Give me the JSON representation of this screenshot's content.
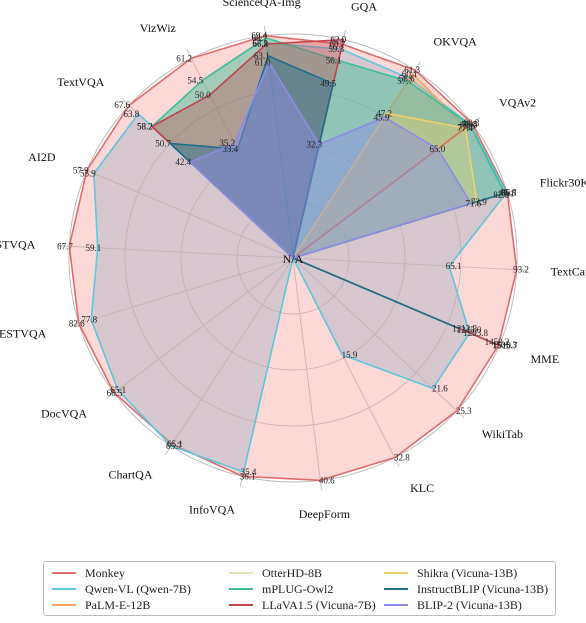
{
  "chart_data": {
    "type": "radar",
    "title": "",
    "axes": [
      "GQA",
      "OKVQA",
      "VQAv2",
      "Flickr30K",
      "TextCaps",
      "MME",
      "WikiTab",
      "KLC",
      "DeepForm",
      "InfoVQA",
      "ChartQA",
      "DocVQA",
      "ESTVQA",
      "STVQA",
      "AI2D",
      "TextVQA",
      "VizWiz",
      "ScienceQA-Img"
    ],
    "center_label": "N/A",
    "grid": true,
    "legend_position": "bottom",
    "series": [
      {
        "name": "Monkey",
        "color": "#e06c6c",
        "fill": "#f8a9a6",
        "values": [
          60.7,
          61.3,
          80.3,
          86.1,
          93.2,
          1505.3,
          25.3,
          32.8,
          40.6,
          36.1,
          65.1,
          66.5,
          82.6,
          67.7,
          57.9,
          67.6,
          61.2,
          69.4
        ],
        "labels": [
          "60.7",
          "61.3",
          "80.3",
          "86.1",
          "93.2",
          "1505.3",
          "25.3",
          "32.8",
          "40.6",
          "36.1",
          "65.1",
          "66.5",
          "82.6",
          "67.7",
          "57.9",
          "67.6",
          "61.2",
          "69.4"
        ]
      },
      {
        "name": "Qwen-VL (Qwen-7B)",
        "color": "#5bc8dc",
        "fill": "#aab4c4",
        "values": [
          59.3,
          58.6,
          79.5,
          85.8,
          65.1,
          1293.8,
          21.6,
          15.9,
          null,
          35.4,
          65.7,
          65.1,
          77.8,
          59.1,
          55.9,
          63.8,
          null,
          67.1
        ],
        "labels": [
          "59.3",
          "58.6",
          "79.5",
          "85.8",
          "65.1",
          "1293.8",
          "21.6",
          "15.9",
          "",
          "35.4",
          "65.7",
          "65.1",
          "77.8",
          "59.1",
          "55.9",
          "63.8",
          "",
          "67.1"
        ]
      },
      {
        "name": "PaLM-E-12B",
        "color": "#f4a261",
        "fill": "#f4a261",
        "values": [
          null,
          60.1,
          77.7,
          null,
          null,
          null,
          null,
          null,
          null,
          null,
          null,
          null,
          null,
          null,
          null,
          null,
          null,
          null
        ],
        "labels": [
          "",
          "60.1",
          "77.7",
          "",
          "",
          "",
          "",
          "",
          "",
          "",
          "",
          "",
          "",
          "",
          "",
          "",
          "",
          ""
        ]
      },
      {
        "name": "OtterHD-8B",
        "color": "#e9e2b4",
        "fill": "#e9e2b4",
        "values": [
          null,
          null,
          null,
          null,
          null,
          1245.0,
          null,
          null,
          null,
          null,
          null,
          null,
          null,
          null,
          null,
          null,
          null,
          null
        ],
        "labels": [
          "",
          "",
          "",
          "",
          "",
          "1245.0",
          "",
          "",
          "",
          "",
          "",
          "",
          "",
          "",
          "",
          "",
          "",
          ""
        ]
      },
      {
        "name": "mPLUG-Owl2",
        "color": "#3cbf9a",
        "fill": "#3cbf9a",
        "values": [
          56.1,
          57.7,
          79.4,
          85.1,
          null,
          1450.2,
          null,
          null,
          null,
          null,
          null,
          null,
          null,
          null,
          null,
          58.2,
          54.5,
          68.7
        ],
        "labels": [
          "56.1",
          "57.7",
          "79.4",
          "85.1",
          "",
          "1450.2",
          "",
          "",
          "",
          "",
          "",
          "",
          "",
          "",
          "",
          "58.2",
          "54.5",
          "68.7"
        ]
      },
      {
        "name": "LLaVA1.5 (Vicuna-7B)",
        "color": "#c0444c",
        "fill": "#c0444c",
        "values": [
          62.0,
          null,
          78.5,
          null,
          null,
          1510.7,
          null,
          null,
          null,
          null,
          null,
          null,
          null,
          null,
          null,
          58.2,
          50.0,
          66.8
        ],
        "labels": [
          "62.0",
          "",
          "78.5",
          "",
          "",
          "1510.7",
          "",
          "",
          "",
          "",
          "",
          "",
          "",
          "",
          "",
          "58.2",
          "50.0",
          "66.8"
        ]
      },
      {
        "name": "Shikra (Vicuna-13B)",
        "color": "#f2d06b",
        "fill": "#f2d06b",
        "values": [
          null,
          47.2,
          77.4,
          73.9,
          null,
          null,
          null,
          null,
          null,
          null,
          null,
          null,
          null,
          null,
          null,
          null,
          null,
          null
        ],
        "labels": [
          "",
          "47.2",
          "77.4",
          "73.9",
          "",
          "",
          "",
          "",
          "",
          "",
          "",
          "",
          "",
          "",
          "",
          "",
          "",
          ""
        ]
      },
      {
        "name": "InstructBLIP (Vicuna-13B)",
        "color": "#1f6f8b",
        "fill": "#1f6f8b",
        "values": [
          49.5,
          null,
          null,
          82.8,
          null,
          1212.8,
          null,
          null,
          null,
          null,
          null,
          null,
          null,
          null,
          null,
          50.7,
          33.4,
          63.1
        ],
        "labels": [
          "49.5",
          "",
          "",
          "82.8",
          "",
          "1212.8",
          "",
          "",
          "",
          "",
          "",
          "",
          "",
          "",
          "",
          "50.7",
          "33.4",
          "63.1"
        ]
      },
      {
        "name": "BLIP-2 (Vicuna-13B)",
        "color": "#8c8ce6",
        "fill": "#8c8ce6",
        "values": [
          32.3,
          45.9,
          65.0,
          71.6,
          null,
          null,
          null,
          null,
          null,
          null,
          null,
          null,
          null,
          null,
          null,
          42.4,
          35.2,
          61.0
        ],
        "labels": [
          "32.3",
          "45.9",
          "65.0",
          "71.6",
          "",
          "",
          "",
          "",
          "",
          "",
          "",
          "",
          "",
          "",
          "",
          "42.4",
          "35.2",
          "61.0"
        ]
      }
    ]
  },
  "legend": {
    "items": [
      {
        "label": "Monkey",
        "color": "#e06c6c"
      },
      {
        "label": "Qwen-VL (Qwen-7B)",
        "color": "#5bc8dc"
      },
      {
        "label": "PaLM-E-12B",
        "color": "#f4a261"
      },
      {
        "label": "OtterHD-8B",
        "color": "#e9e2b4"
      },
      {
        "label": "mPLUG-Owl2",
        "color": "#3cbf9a"
      },
      {
        "label": "LLaVA1.5 (Vicuna-7B)",
        "color": "#c0444c"
      },
      {
        "label": "Shikra (Vicuna-13B)",
        "color": "#f2d06b"
      },
      {
        "label": "InstructBLIP (Vicuna-13B)",
        "color": "#1f6f8b"
      },
      {
        "label": "BLIP-2 (Vicuna-13B)",
        "color": "#8c8ce6"
      }
    ]
  }
}
